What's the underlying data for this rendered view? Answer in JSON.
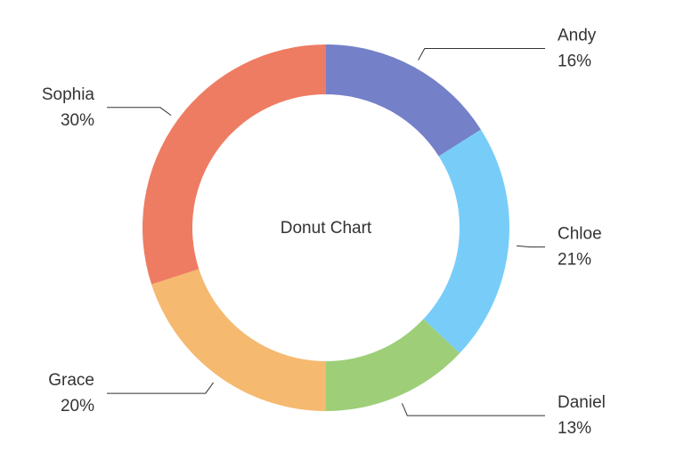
{
  "chart_data": {
    "type": "donut",
    "title": "Donut Chart",
    "categories": [
      "Andy",
      "Chloe",
      "Daniel",
      "Grace",
      "Sophia"
    ],
    "values": [
      16,
      21,
      13,
      20,
      30
    ],
    "value_labels": [
      "16%",
      "21%",
      "13%",
      "20%",
      "30%"
    ],
    "colors": [
      "#7480c8",
      "#77cdf8",
      "#9ecf78",
      "#f5b970",
      "#ee7c63"
    ]
  }
}
